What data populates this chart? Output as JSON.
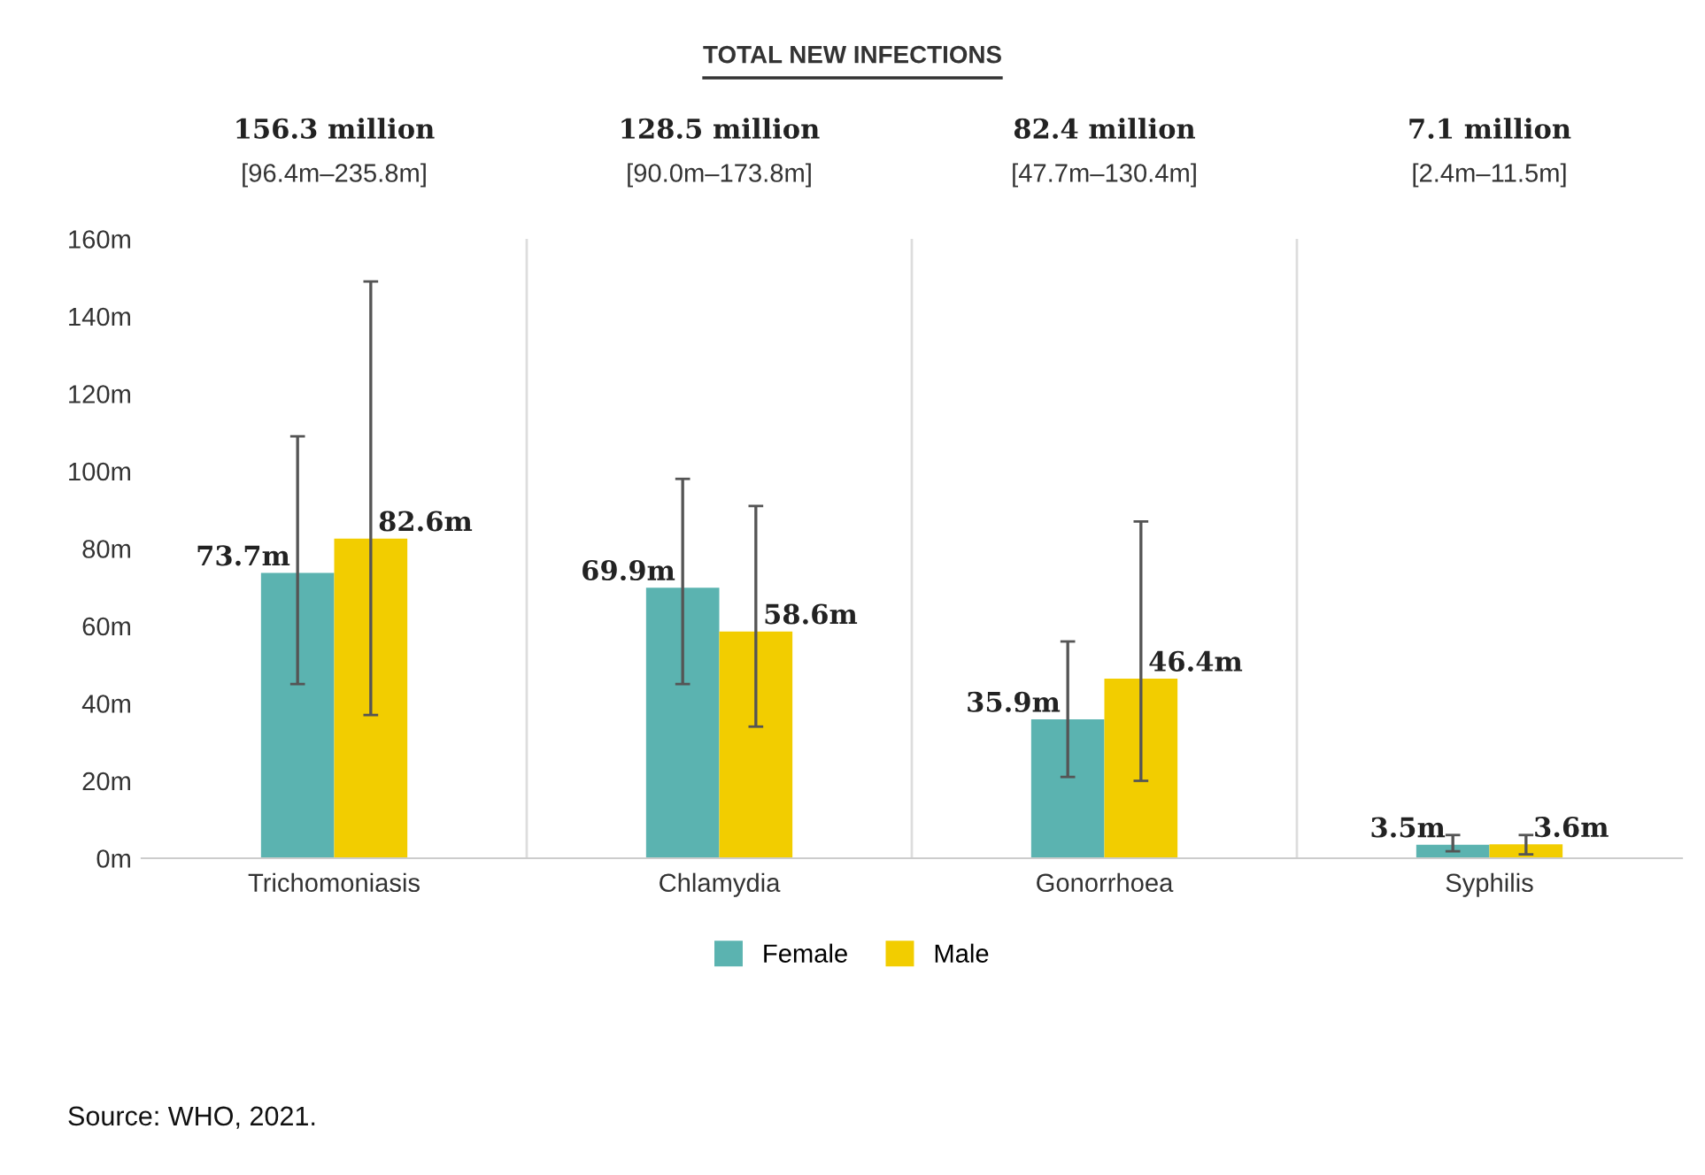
{
  "chart_data": {
    "type": "bar",
    "title": "TOTAL NEW INFECTIONS",
    "categories": [
      "Trichomoniasis",
      "Chlamydia",
      "Gonorrhoea",
      "Syphilis"
    ],
    "series": [
      {
        "name": "Female",
        "color": "#5bb3b0",
        "values": [
          73.7,
          69.9,
          35.9,
          3.5
        ],
        "value_labels": [
          "73.7m",
          "69.9m",
          "35.9m",
          "3.5m"
        ],
        "errors": [
          [
            45,
            109
          ],
          [
            45,
            98
          ],
          [
            21,
            56
          ],
          [
            1.8,
            6
          ]
        ]
      },
      {
        "name": "Male",
        "color": "#f2cd00",
        "values": [
          82.6,
          58.6,
          46.4,
          3.6
        ],
        "value_labels": [
          "82.6m",
          "58.6m",
          "46.4m",
          "3.6m"
        ],
        "errors": [
          [
            37,
            149
          ],
          [
            34,
            91
          ],
          [
            20,
            87
          ],
          [
            1,
            6
          ]
        ]
      }
    ],
    "ylim": [
      0,
      160
    ],
    "yticks": [
      {
        "value": 0,
        "label": "0m"
      },
      {
        "value": 20,
        "label": "20m"
      },
      {
        "value": 40,
        "label": "40m"
      },
      {
        "value": 60,
        "label": "60m"
      },
      {
        "value": 80,
        "label": "80m"
      },
      {
        "value": 100,
        "label": "100m"
      },
      {
        "value": 120,
        "label": "120m"
      },
      {
        "value": 140,
        "label": "140m"
      },
      {
        "value": 160,
        "label": "160m"
      }
    ],
    "grid": false,
    "legend": "bottom",
    "annotations": [
      "156.3 million",
      "[96.4m–235.8m]",
      "128.5 million",
      "[90.0m–173.8m]",
      "82.4 million",
      "[47.7m–130.4m]",
      "7.1 million",
      "[2.4m–11.5m]",
      "Source: WHO, 2021."
    ]
  }
}
